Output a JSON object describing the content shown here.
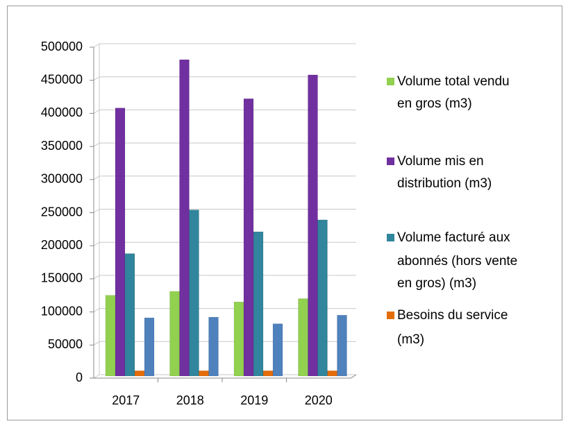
{
  "chart_data": {
    "type": "bar",
    "categories": [
      "2017",
      "2018",
      "2019",
      "2020"
    ],
    "series": [
      {
        "name": "Volume total vendu en gros (m3)",
        "color": "#92d050",
        "values": [
          122000,
          128000,
          112000,
          117000
        ]
      },
      {
        "name": "Volume mis en distribution (m3)",
        "color": "#7030a0",
        "values": [
          405000,
          478000,
          419000,
          455000
        ]
      },
      {
        "name": "Volume facturé aux abonnés (hors vente en gros) (m3)",
        "color": "#31859c",
        "values": [
          185000,
          251000,
          218000,
          236000
        ]
      },
      {
        "name": "Besoins du service (m3)",
        "color": "#e46c0a",
        "values": [
          8000,
          8000,
          8000,
          8000
        ]
      },
      {
        "color": "#4f81bd",
        "values": [
          88000,
          89000,
          79000,
          92000
        ]
      }
    ],
    "ylim": [
      0,
      500000
    ],
    "yticks": [
      0,
      50000,
      100000,
      150000,
      200000,
      250000,
      300000,
      350000,
      400000,
      450000,
      500000
    ],
    "grid": true,
    "legend": "right"
  }
}
